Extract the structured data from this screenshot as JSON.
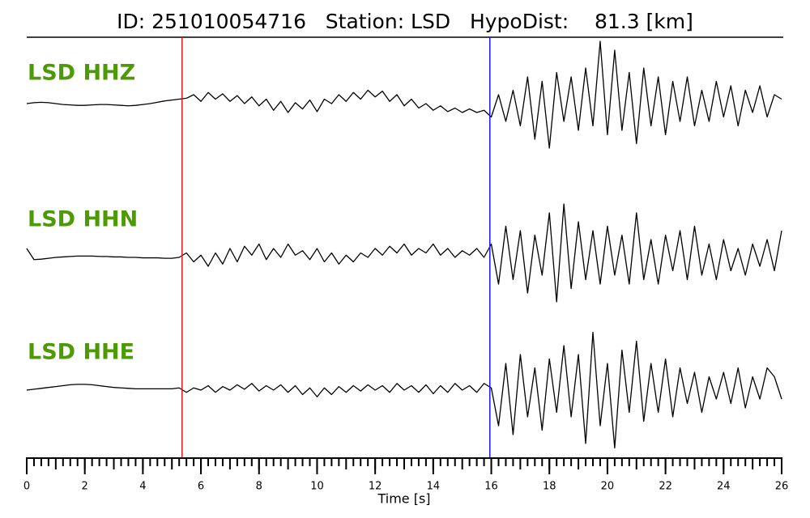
{
  "chart_data": {
    "type": "line",
    "title": "ID: 251010054716   Station: LSD   HypoDist:    81.3 [km]",
    "xlabel": "Time [s]",
    "xlim": [
      0,
      26
    ],
    "xticks": [
      0,
      2,
      4,
      6,
      8,
      10,
      12,
      14,
      16,
      18,
      20,
      22,
      24,
      26
    ],
    "ylim": [
      -1,
      1
    ],
    "line_color": "#000000",
    "label_color": "#4e9a06",
    "picks": [
      {
        "value": 5.35,
        "color": "#e8181f"
      },
      {
        "value": 15.95,
        "color": "#1a1aff"
      }
    ],
    "x": [
      0,
      0.25,
      0.5,
      0.75,
      1,
      1.25,
      1.5,
      1.75,
      2,
      2.25,
      2.5,
      2.75,
      3,
      3.25,
      3.5,
      3.75,
      4,
      4.25,
      4.5,
      4.75,
      5,
      5.25,
      5.5,
      5.75,
      6,
      6.25,
      6.5,
      6.75,
      7,
      7.25,
      7.5,
      7.75,
      8,
      8.25,
      8.5,
      8.75,
      9,
      9.25,
      9.5,
      9.75,
      10,
      10.25,
      10.5,
      10.75,
      11,
      11.25,
      11.5,
      11.75,
      12,
      12.25,
      12.5,
      12.75,
      13,
      13.25,
      13.5,
      13.75,
      14,
      14.25,
      14.5,
      14.75,
      15,
      15.25,
      15.5,
      15.75,
      16,
      16.25,
      16.5,
      16.75,
      17,
      17.25,
      17.5,
      17.75,
      18,
      18.25,
      18.5,
      18.75,
      19,
      19.25,
      19.5,
      19.75,
      20,
      20.25,
      20.5,
      20.75,
      21,
      21.25,
      21.5,
      21.75,
      22,
      22.25,
      22.5,
      22.75,
      23,
      23.25,
      23.5,
      23.75,
      24,
      24.25,
      24.5,
      24.75,
      25,
      25.25,
      25.5,
      25.75,
      26
    ],
    "series": [
      {
        "name": "LSD HHZ",
        "values": [
          0,
          0.02,
          0.03,
          0.02,
          0,
          -0.02,
          -0.03,
          -0.04,
          -0.04,
          -0.03,
          -0.02,
          -0.02,
          -0.03,
          -0.04,
          -0.05,
          -0.04,
          -0.02,
          0,
          0.03,
          0.06,
          0.08,
          0.1,
          0.12,
          0.2,
          0.05,
          0.25,
          0.1,
          0.22,
          0.05,
          0.18,
          0.0,
          0.15,
          -0.05,
          0.1,
          -0.15,
          0.05,
          -0.2,
          0.02,
          -0.12,
          0.08,
          -0.18,
          0.1,
          0.0,
          0.2,
          0.05,
          0.25,
          0.1,
          0.3,
          0.15,
          0.28,
          0.05,
          0.2,
          -0.05,
          0.1,
          -0.1,
          0.0,
          -0.15,
          -0.05,
          -0.18,
          -0.1,
          -0.2,
          -0.12,
          -0.2,
          -0.15,
          -0.3,
          0.2,
          -0.4,
          0.3,
          -0.5,
          0.6,
          -0.8,
          0.5,
          -1.0,
          0.7,
          -0.4,
          0.6,
          -0.6,
          0.8,
          -0.5,
          1.4,
          -0.7,
          1.2,
          -0.6,
          0.7,
          -0.9,
          0.8,
          -0.5,
          0.6,
          -0.7,
          0.5,
          -0.4,
          0.6,
          -0.5,
          0.3,
          -0.4,
          0.5,
          -0.3,
          0.4,
          -0.5,
          0.3,
          -0.2,
          0.4,
          -0.3,
          0.2,
          0.1
        ]
      },
      {
        "name": "LSD HHN",
        "values": [
          0.2,
          -0.05,
          -0.04,
          -0.02,
          0,
          0.01,
          0.02,
          0.03,
          0.03,
          0.03,
          0.02,
          0.02,
          0.01,
          0.01,
          0,
          0,
          -0.01,
          -0.01,
          -0.01,
          -0.02,
          -0.02,
          0.0,
          0.1,
          -0.1,
          0.05,
          -0.2,
          0.1,
          -0.15,
          0.2,
          -0.1,
          0.25,
          0.05,
          0.3,
          -0.05,
          0.2,
          0.0,
          0.3,
          0.05,
          0.15,
          -0.05,
          0.2,
          -0.1,
          0.1,
          -0.15,
          0.05,
          -0.1,
          0.1,
          0.0,
          0.2,
          0.05,
          0.25,
          0.1,
          0.3,
          0.05,
          0.2,
          0.1,
          0.3,
          0.05,
          0.2,
          0.0,
          0.15,
          0.05,
          0.2,
          0.0,
          0.3,
          -0.6,
          0.7,
          -0.5,
          0.6,
          -0.8,
          0.5,
          -0.4,
          1.0,
          -1.0,
          1.2,
          -0.7,
          0.8,
          -0.5,
          0.6,
          -0.6,
          0.7,
          -0.4,
          0.5,
          -0.6,
          1.0,
          -0.5,
          0.4,
          -0.6,
          0.5,
          -0.3,
          0.6,
          -0.5,
          0.7,
          -0.4,
          0.3,
          -0.5,
          0.4,
          -0.3,
          0.2,
          -0.4,
          0.3,
          -0.2,
          0.4,
          -0.3,
          0.6
        ]
      },
      {
        "name": "LSD HHE",
        "values": [
          0,
          0.02,
          0.04,
          0.06,
          0.08,
          0.1,
          0.12,
          0.13,
          0.13,
          0.12,
          0.1,
          0.08,
          0.06,
          0.05,
          0.04,
          0.03,
          0.03,
          0.03,
          0.03,
          0.03,
          0.03,
          0.05,
          -0.05,
          0.05,
          0.0,
          0.1,
          -0.05,
          0.08,
          0.0,
          0.12,
          0.02,
          0.15,
          -0.02,
          0.1,
          0.0,
          0.12,
          -0.05,
          0.1,
          -0.1,
          0.05,
          -0.15,
          0.05,
          -0.1,
          0.08,
          -0.05,
          0.1,
          -0.02,
          0.12,
          0.0,
          0.1,
          -0.05,
          0.15,
          0.0,
          0.1,
          -0.05,
          0.12,
          -0.08,
          0.1,
          -0.05,
          0.15,
          0.0,
          0.1,
          -0.05,
          0.15,
          0.05,
          -0.8,
          0.6,
          -1.0,
          0.8,
          -0.6,
          0.5,
          -0.9,
          0.7,
          -0.5,
          1.0,
          -0.6,
          0.8,
          -1.2,
          1.3,
          -0.8,
          0.6,
          -1.3,
          0.9,
          -0.5,
          1.1,
          -0.7,
          0.6,
          -0.5,
          0.7,
          -0.6,
          0.5,
          -0.3,
          0.4,
          -0.5,
          0.3,
          -0.2,
          0.4,
          -0.3,
          0.5,
          -0.4,
          0.3,
          -0.2,
          0.5,
          0.3,
          -0.2
        ]
      }
    ]
  }
}
